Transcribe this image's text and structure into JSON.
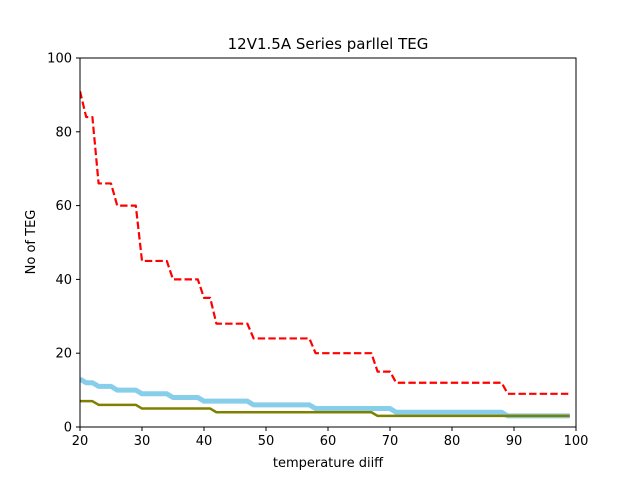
{
  "chart_data": {
    "type": "line",
    "title": "12V1.5A Series parllel TEG",
    "xlabel": "temperature diiff",
    "ylabel": "No of TEG",
    "xlim": [
      20,
      100
    ],
    "ylim": [
      0,
      100
    ],
    "xticks": [
      20,
      30,
      40,
      50,
      60,
      70,
      80,
      90,
      100
    ],
    "yticks": [
      0,
      20,
      40,
      60,
      80,
      100
    ],
    "grid": false,
    "x": [
      20,
      21,
      22,
      23,
      24,
      25,
      26,
      27,
      28,
      29,
      30,
      31,
      32,
      33,
      34,
      35,
      36,
      37,
      38,
      39,
      40,
      41,
      42,
      43,
      44,
      45,
      46,
      47,
      48,
      49,
      50,
      51,
      52,
      53,
      54,
      55,
      56,
      57,
      58,
      59,
      60,
      61,
      62,
      63,
      64,
      65,
      66,
      67,
      68,
      69,
      70,
      71,
      72,
      73,
      74,
      75,
      76,
      77,
      78,
      79,
      80,
      81,
      82,
      83,
      84,
      85,
      86,
      87,
      88,
      89,
      90,
      91,
      92,
      93,
      94,
      95,
      96,
      97,
      98,
      99
    ],
    "series": [
      {
        "color": "#ff0000",
        "style": "dashed",
        "values": [
          91,
          84,
          84,
          66,
          66,
          66,
          60,
          60,
          60,
          60,
          45,
          45,
          45,
          45,
          45,
          40,
          40,
          40,
          40,
          40,
          35,
          35,
          28,
          28,
          28,
          28,
          28,
          28,
          24,
          24,
          24,
          24,
          24,
          24,
          24,
          24,
          24,
          24,
          20,
          20,
          20,
          20,
          20,
          20,
          20,
          20,
          20,
          20,
          15,
          15,
          15,
          12,
          12,
          12,
          12,
          12,
          12,
          12,
          12,
          12,
          12,
          12,
          12,
          12,
          12,
          12,
          12,
          12,
          12,
          9,
          9,
          9,
          9,
          9,
          9,
          9,
          9,
          9,
          9,
          9
        ]
      },
      {
        "color": "#87ceeb",
        "style": "solid-thick",
        "values": [
          13,
          12,
          12,
          11,
          11,
          11,
          10,
          10,
          10,
          10,
          9,
          9,
          9,
          9,
          9,
          8,
          8,
          8,
          8,
          8,
          7,
          7,
          7,
          7,
          7,
          7,
          7,
          7,
          6,
          6,
          6,
          6,
          6,
          6,
          6,
          6,
          6,
          6,
          5,
          5,
          5,
          5,
          5,
          5,
          5,
          5,
          5,
          5,
          5,
          5,
          5,
          4,
          4,
          4,
          4,
          4,
          4,
          4,
          4,
          4,
          4,
          4,
          4,
          4,
          4,
          4,
          4,
          4,
          4,
          3,
          3,
          3,
          3,
          3,
          3,
          3,
          3,
          3,
          3,
          3
        ]
      },
      {
        "color": "#808000",
        "style": "solid",
        "values": [
          7,
          7,
          7,
          6,
          6,
          6,
          6,
          6,
          6,
          6,
          5,
          5,
          5,
          5,
          5,
          5,
          5,
          5,
          5,
          5,
          5,
          5,
          4,
          4,
          4,
          4,
          4,
          4,
          4,
          4,
          4,
          4,
          4,
          4,
          4,
          4,
          4,
          4,
          4,
          4,
          4,
          4,
          4,
          4,
          4,
          4,
          4,
          4,
          3,
          3,
          3,
          3,
          3,
          3,
          3,
          3,
          3,
          3,
          3,
          3,
          3,
          3,
          3,
          3,
          3,
          3,
          3,
          3,
          3,
          3,
          3,
          3,
          3,
          3,
          3,
          3,
          3,
          3,
          3,
          3
        ]
      }
    ]
  }
}
